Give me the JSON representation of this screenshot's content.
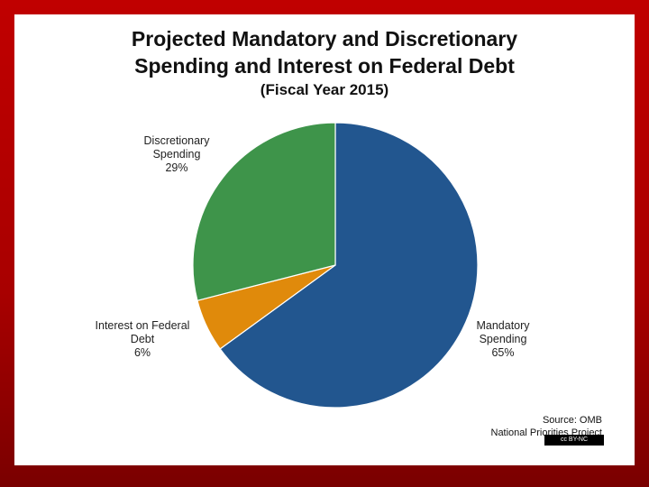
{
  "title_line1": "Projected Mandatory and Discretionary",
  "title_line2": "Spending and Interest on Federal Debt",
  "subtitle": "(Fiscal Year 2015)",
  "source_line1": "Source: OMB",
  "source_line2": "National Priorities Project",
  "license_badge": "cc BY-NC",
  "chart_data": {
    "type": "pie",
    "title": "Projected Mandatory and Discretionary Spending and Interest on Federal Debt (Fiscal Year 2015)",
    "slices": [
      {
        "label_lines": [
          "Mandatory",
          "Spending"
        ],
        "pct_label": "65%",
        "value": 65,
        "color": "#22568f"
      },
      {
        "label_lines": [
          "Interest on Federal",
          "Debt"
        ],
        "pct_label": "6%",
        "value": 6,
        "color": "#e08a0b"
      },
      {
        "label_lines": [
          "Discretionary",
          "Spending"
        ],
        "pct_label": "29%",
        "value": 29,
        "color": "#3e944a"
      }
    ]
  }
}
